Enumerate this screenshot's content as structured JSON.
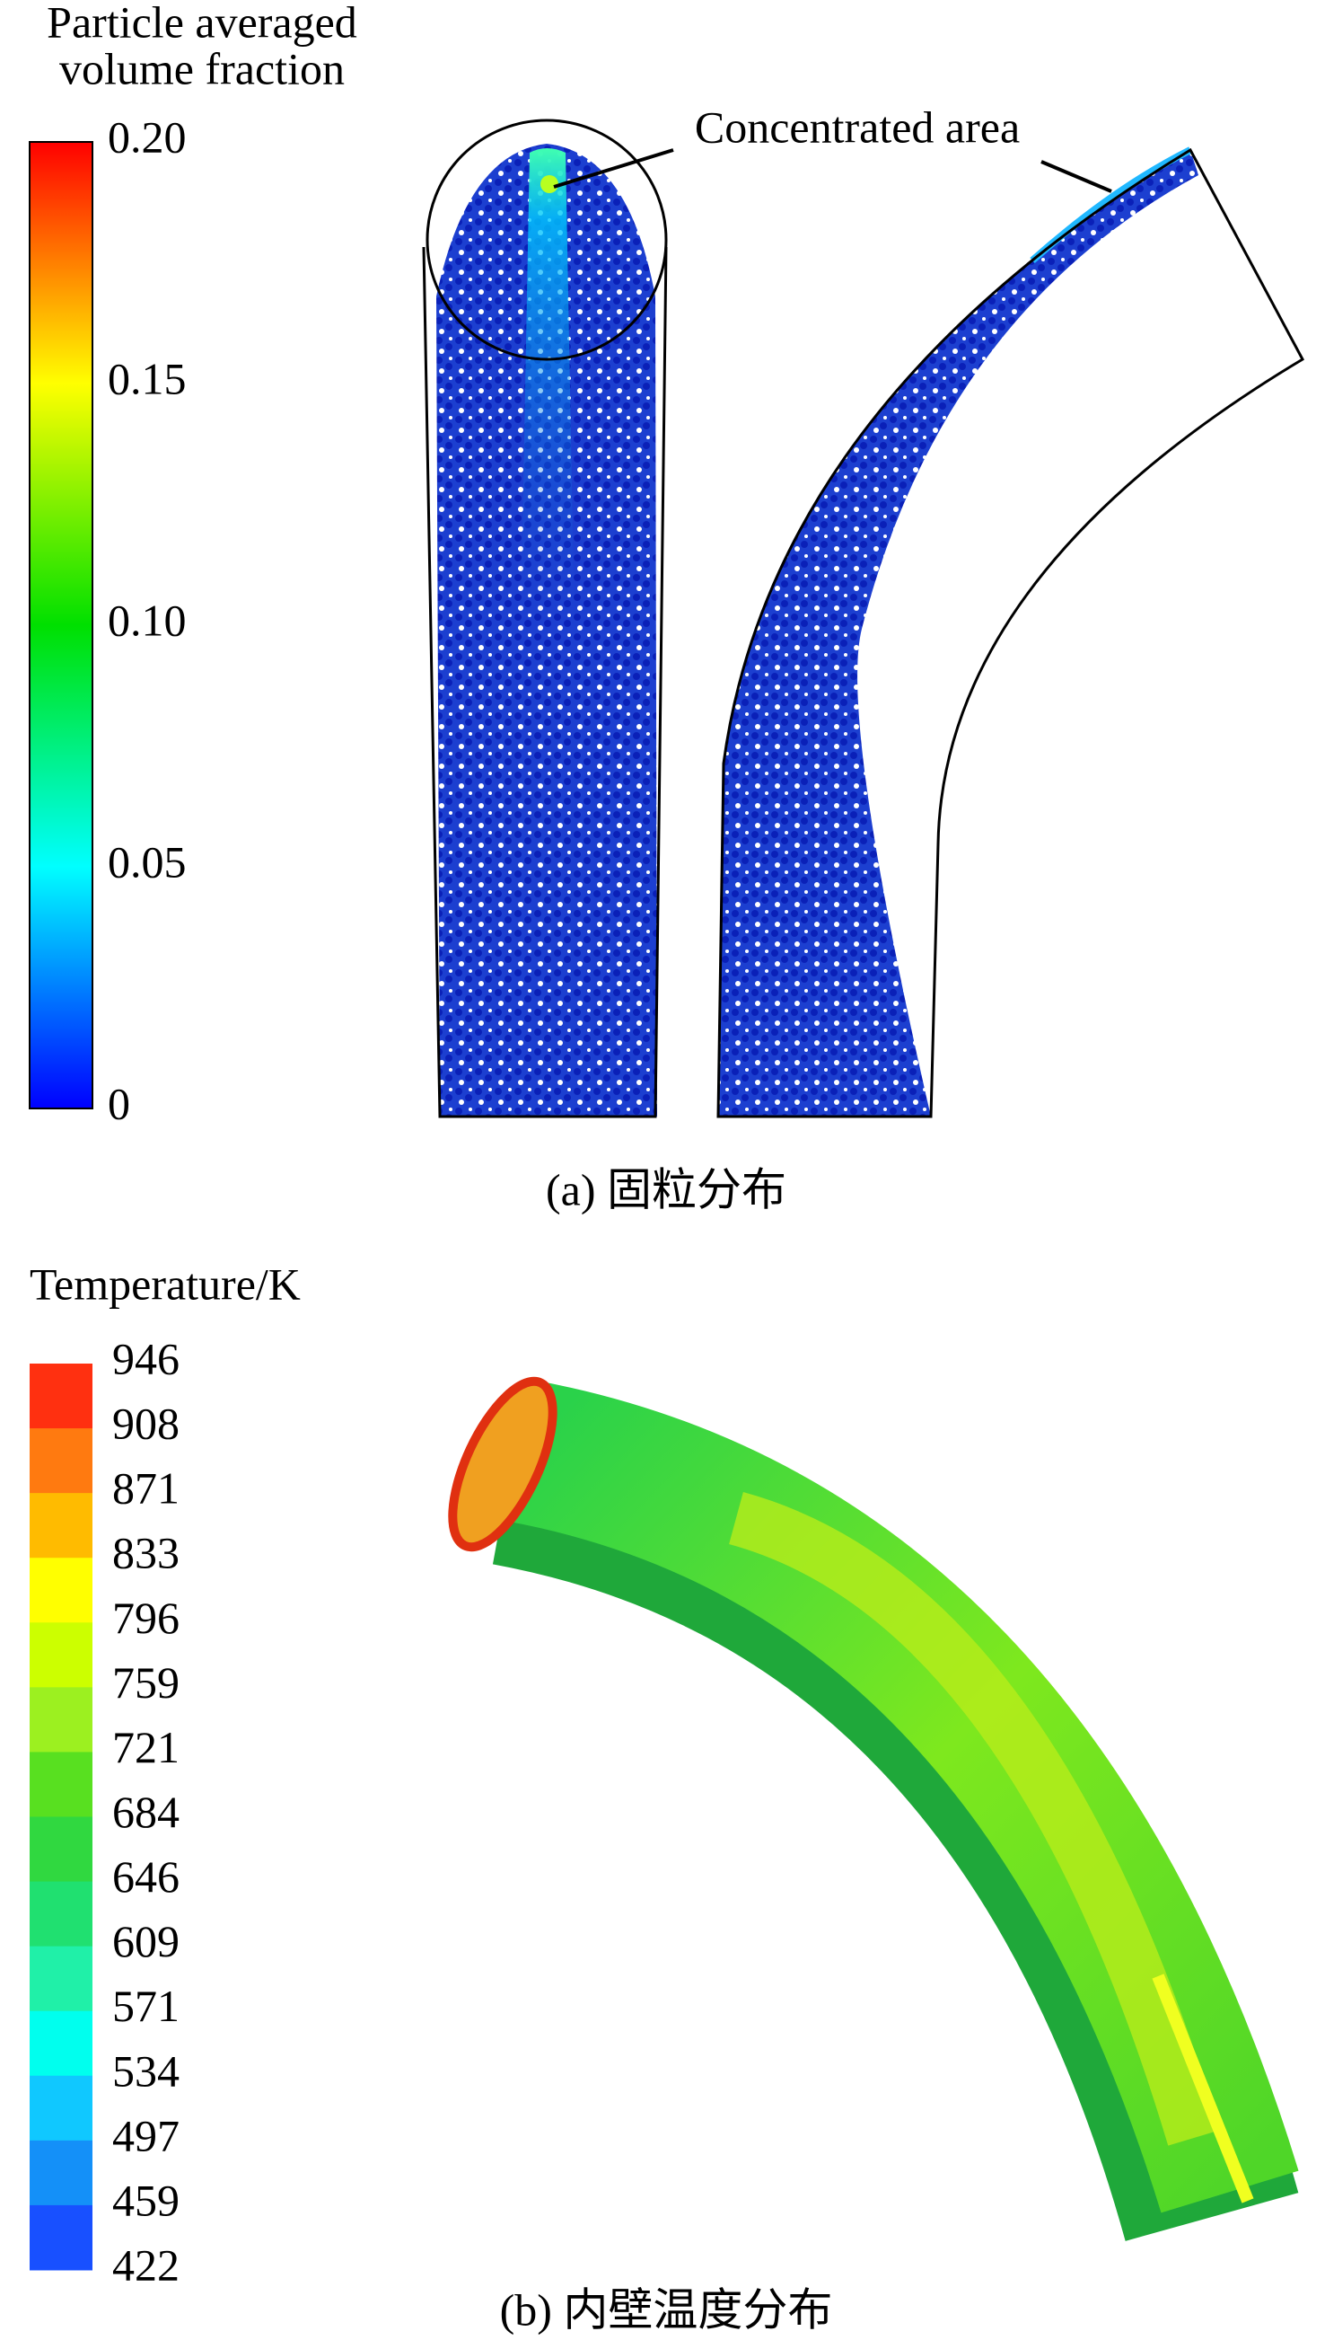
{
  "panel_a": {
    "colorbar_title_lines": [
      "Particle averaged",
      "volume fraction"
    ],
    "colorbar_ticks": [
      "0.20",
      "0.15",
      "0.10",
      "0.05",
      "0"
    ],
    "annotation": "Concentrated area",
    "caption": "(a) 固粒分布"
  },
  "panel_b": {
    "colorbar_title": "Temperature/K",
    "colorbar_ticks": [
      "946",
      "908",
      "871",
      "833",
      "796",
      "759",
      "721",
      "684",
      "646",
      "609",
      "571",
      "534",
      "497",
      "459",
      "422"
    ],
    "caption": "(b) 内壁温度分布"
  }
}
